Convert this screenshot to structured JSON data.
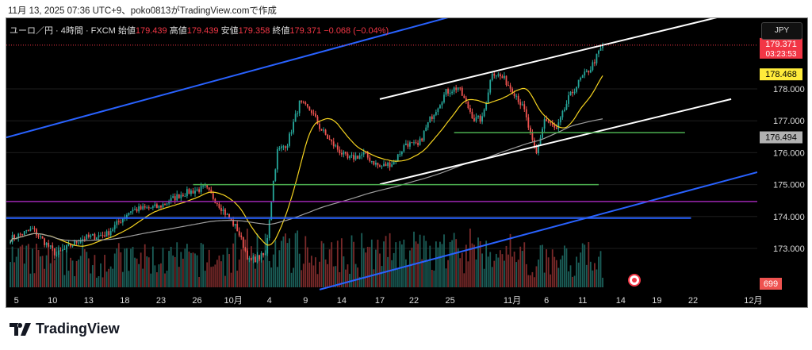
{
  "caption": "11月 13, 2025 07:36 UTC+9、poko0813がTradingView.comで作成",
  "legend": {
    "symbol": "ユーロ／円 · 4時間 · FXCM",
    "open_label": "始値",
    "open": "179.439",
    "high_label": "高値",
    "high": "179.439",
    "low_label": "安値",
    "low": "179.358",
    "close_label": "終値",
    "close": "179.371",
    "change": "−0.068 (−0.04%)"
  },
  "currency_button": "JPY",
  "brand": "TradingView",
  "colors": {
    "up": "#26a69a",
    "down": "#ef5350",
    "ma_fast": "#f5d31f",
    "ma_slow": "#9e9e9e",
    "blue_line": "#2962ff",
    "white_line": "#ffffff",
    "green_line": "#4caf50",
    "purple_line": "#9c27b0",
    "last_price": "#f23645"
  },
  "chart_data": {
    "type": "candlestick",
    "symbol": "EUR/JPY 4H",
    "ylim": [
      171.9,
      180.0
    ],
    "y_ticks": [
      "178.000",
      "177.000",
      "176.000",
      "175.000",
      "174.000",
      "173.000"
    ],
    "y_tick_values": [
      178,
      177,
      176,
      175,
      174,
      173
    ],
    "x_ticks": [
      {
        "i": 3,
        "label": "5"
      },
      {
        "i": 21,
        "label": "10"
      },
      {
        "i": 39,
        "label": "13"
      },
      {
        "i": 57,
        "label": "18"
      },
      {
        "i": 75,
        "label": "23"
      },
      {
        "i": 93,
        "label": "26"
      },
      {
        "i": 111,
        "label": "10月"
      },
      {
        "i": 129,
        "label": "4"
      },
      {
        "i": 147,
        "label": "9"
      },
      {
        "i": 165,
        "label": "14"
      },
      {
        "i": 184,
        "label": "17"
      },
      {
        "i": 201,
        "label": "22"
      },
      {
        "i": 219,
        "label": "25"
      },
      {
        "i": 250,
        "label": "11月"
      },
      {
        "i": 267,
        "label": "6"
      },
      {
        "i": 285,
        "label": "11"
      },
      {
        "i": 304,
        "label": "14"
      },
      {
        "i": 322,
        "label": "19"
      },
      {
        "i": 340,
        "label": "22"
      },
      {
        "i": 370,
        "label": "12月"
      }
    ],
    "xlim": [
      -2,
      372
    ],
    "price_path": [
      [
        0,
        173.3
      ],
      [
        11,
        173.6
      ],
      [
        23,
        172.8
      ],
      [
        35,
        173.3
      ],
      [
        48,
        173.45
      ],
      [
        60,
        174.2
      ],
      [
        74,
        174.3
      ],
      [
        85,
        174.7
      ],
      [
        97,
        174.9
      ],
      [
        103,
        174.45
      ],
      [
        113,
        173.6
      ],
      [
        119,
        172.6
      ],
      [
        127,
        172.8
      ],
      [
        131,
        175.1
      ],
      [
        133,
        176.05
      ],
      [
        138,
        176.3
      ],
      [
        144,
        177.55
      ],
      [
        150,
        177.3
      ],
      [
        154,
        176.8
      ],
      [
        160,
        176.3
      ],
      [
        168,
        175.8
      ],
      [
        176,
        175.95
      ],
      [
        184,
        175.55
      ],
      [
        191,
        175.7
      ],
      [
        197,
        176.3
      ],
      [
        203,
        176.2
      ],
      [
        209,
        177.05
      ],
      [
        217,
        177.9
      ],
      [
        223,
        178.05
      ],
      [
        231,
        177.05
      ],
      [
        235,
        177.05
      ],
      [
        240,
        178.55
      ],
      [
        246,
        178.3
      ],
      [
        252,
        177.8
      ],
      [
        256,
        177.3
      ],
      [
        260,
        176.3
      ],
      [
        262,
        175.95
      ],
      [
        266,
        177.05
      ],
      [
        272,
        176.7
      ],
      [
        278,
        177.7
      ],
      [
        284,
        178.3
      ],
      [
        289,
        178.65
      ],
      [
        295,
        179.37
      ]
    ],
    "last_price": {
      "value": "179.371",
      "countdown": "03:23:53"
    },
    "ma_fast_label": "178.468",
    "ma_slow_label": "176.494",
    "volume_label": "699",
    "drawings": [
      {
        "kind": "trend",
        "color": "blue_line",
        "p1": [
          -2,
          176.48
        ],
        "p2": [
          221,
          180.29
        ]
      },
      {
        "kind": "trend",
        "color": "white_line",
        "p1": [
          184,
          177.68
        ],
        "p2": [
          352,
          180.24
        ]
      },
      {
        "kind": "trend",
        "color": "white_line",
        "p1": [
          184,
          175.01
        ],
        "p2": [
          359,
          177.68
        ]
      },
      {
        "kind": "trend",
        "color": "blue_line",
        "p1": [
          154,
          171.71
        ],
        "p2": [
          372,
          175.39
        ]
      },
      {
        "kind": "trend",
        "color": "green_line",
        "p1": [
          91,
          175.0
        ],
        "p2": [
          293,
          175.0
        ]
      },
      {
        "kind": "trend",
        "color": "green_line",
        "p1": [
          221,
          176.63
        ],
        "p2": [
          336,
          176.63
        ]
      },
      {
        "kind": "trend",
        "color": "purple_line",
        "p1": [
          -2,
          174.47
        ],
        "p2": [
          372,
          174.47
        ]
      },
      {
        "kind": "trend",
        "color": "blue_line",
        "p1": [
          -2,
          173.95
        ],
        "p2": [
          339,
          173.95
        ]
      }
    ]
  }
}
